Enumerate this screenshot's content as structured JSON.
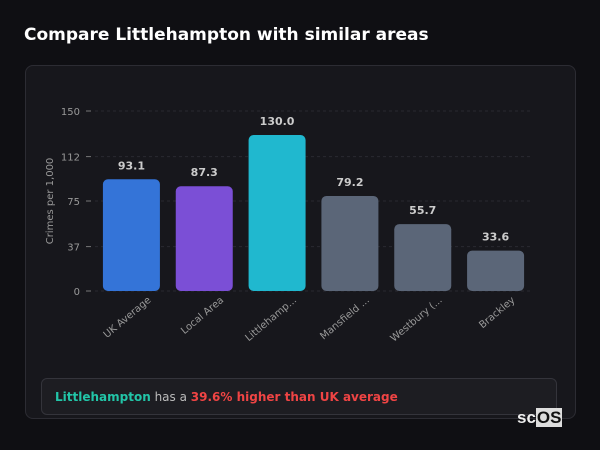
{
  "header": {
    "title": "Compare Littlehampton with similar areas"
  },
  "chart_data": {
    "type": "bar",
    "categories": [
      "UK Average",
      "Local Area",
      "Littlehamp...",
      "Mansfield ...",
      "Westbury (...",
      "Brackley"
    ],
    "values": [
      93.1,
      87.3,
      130.0,
      79.2,
      55.7,
      33.6
    ],
    "value_labels": [
      "93.1",
      "87.3",
      "130.0",
      "79.2",
      "55.7",
      "33.6"
    ],
    "colors": [
      "#3474d8",
      "#7b4fd6",
      "#20b8cf",
      "#5b6678",
      "#5b6678",
      "#5b6678"
    ],
    "ylabel": "Crimes per 1,000",
    "yticks": [
      0,
      37,
      75,
      112,
      150
    ],
    "ylim": [
      0,
      150
    ],
    "grid": true
  },
  "summary": {
    "area": "Littlehampton",
    "middle": "has a",
    "comparison": "39.6% higher than UK average"
  },
  "watermark": {
    "text_a": "sc",
    "text_b": "OS"
  }
}
